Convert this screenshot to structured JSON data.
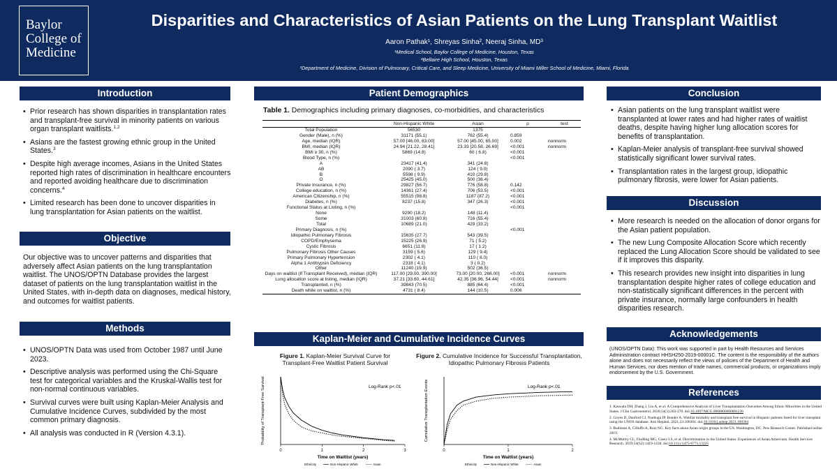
{
  "header": {
    "logo_line1": "Baylor",
    "logo_line2": "College of",
    "logo_line3": "Medicine",
    "title": "Disparities and Characteristics of Asian Patients on the Lung Transplant Waitlist",
    "authors": "Aaron Pathak¹, Shreyas Sinha², Neeraj Sinha, MD³",
    "affiliations": [
      "¹Medical School, Baylor College of Medicine, Houston, Texas",
      "²Bellaire High School, Houston, Texas",
      "³Department of Medicine, Division of Pulmonary, Critical Care, and Sleep Medicine, University of Miami Miller School of Medicine, Miami, Florida"
    ]
  },
  "sections": {
    "introduction": "Introduction",
    "objective": "Objective",
    "methods": "Methods",
    "patient_demographics": "Patient Demographics",
    "km_curves": "Kaplan-Meier and Cumulative Incidence Curves",
    "conclusion": "Conclusion",
    "discussion": "Discussion",
    "acknowledgements": "Acknowledgements",
    "references": "References"
  },
  "introduction": [
    {
      "text": "Prior research has shown disparities in transplantation rates and transplant-free survival in minority patients on various organ transplant waitlists.",
      "sup": "1,2"
    },
    {
      "text": "Asians are the fastest growing ethnic group in the United States.",
      "sup": "3"
    },
    {
      "text": "Despite high average incomes, Asians in the United States reported high rates of discrimination in healthcare encounters and reported avoiding healthcare due to discrimination concerns.",
      "sup": "4"
    },
    {
      "text": "Limited research has been done to uncover disparities in lung transplantation for Asian patients on the waitlist.",
      "sup": ""
    }
  ],
  "objective": "Our objective was to uncover patterns and disparities that adversely affect Asian patients on the lung transplantation waitlist. The UNOS/OPTN Database provides the largest dataset of patients on the lung transplantation waitlist in the United States, with in-depth data on diagnoses, medical history, and outcomes for waitlist patients.",
  "methods": [
    "UNOS/OPTN Data was used from October 1987 until June 2023.",
    "Descriptive analysis was performed using the Chi-Square test for categorical variables and the Kruskal-Wallis test for non-normal continuous variables.",
    "Survival curves were built using Kaplan-Meier Analysis and Cumulative Incidence Curves, subdivided by the most common primary diagnosis.",
    "All analysis was conducted in R (Version 4.3.1)."
  ],
  "table": {
    "caption_bold": "Table 1.",
    "caption_text": " Demographics including primary diagnoses, co-morbidities, and characteristics",
    "headers": [
      "",
      "Non-Hispanic White",
      "Asian",
      "p",
      "test"
    ],
    "rows": [
      [
        "Total Population",
        "56530",
        "1375",
        "",
        ""
      ],
      [
        "Gender (Male), n (%)",
        "31171 (55.1)",
        "762 (55.4)",
        "0.859",
        ""
      ],
      [
        "Age, median (IQR)",
        "57.00 [46.00, 63.00]",
        "57.00 [45.00, 65.00]",
        "0.002",
        "nonnorm"
      ],
      [
        "BMI, median (IQR)",
        "24.94 [21.22, 28.41]",
        "23.33 [20.58, 26.69]",
        "<0.001",
        "nonnorm"
      ],
      [
        "BMI ≥ 30, n (%)",
        "5869 (14.8)",
        "60 ( 6.8)",
        "<0.001",
        ""
      ],
      [
        "Blood Type, n (%)",
        "",
        "",
        "<0.001",
        ""
      ],
      [
        "A",
        "23417 (41.4)",
        "341 (24.8)",
        "",
        ""
      ],
      [
        "AB",
        "2090 ( 3.7)",
        "124 ( 9.0)",
        "",
        ""
      ],
      [
        "B",
        "5598 ( 9.9)",
        "410 (29.8)",
        "",
        ""
      ],
      [
        "O",
        "25425 (45.0)",
        "500 (36.4)",
        "",
        ""
      ],
      [
        "Private Insurance, n (%)",
        "29827 (56.7)",
        "776 (58.8)",
        "0.142",
        ""
      ],
      [
        "College education, n (%)",
        "14361 (27.4)",
        "706 (53.5)",
        "<0.001",
        ""
      ],
      [
        "American Citizenship, n (%)",
        "55515 (98.8)",
        "1187 (87.2)",
        "<0.001",
        ""
      ],
      [
        "Diabetes, n (%)",
        "8237 (15.8)",
        "347 (26.3)",
        "<0.001",
        ""
      ],
      [
        "Functional Status at Listing, n (%)",
        "",
        "",
        "<0.001",
        ""
      ],
      [
        "None",
        "9290 (18.2)",
        "148 (11.4)",
        "",
        ""
      ],
      [
        "Some",
        "31003 (60.8)",
        "716 (55.4)",
        "",
        ""
      ],
      [
        "Total",
        "10689 (21.0)",
        "429 (33.2)",
        "",
        ""
      ],
      [
        "Primary Diagnosis, n (%)",
        "",
        "",
        "<0.001",
        ""
      ],
      [
        "Idiopathic Pulmonary Fibrosis",
        "15635 (27.7)",
        "543 (39.5)",
        "",
        ""
      ],
      [
        "COPD/Emphysema",
        "15225 (26.9)",
        "71 ( 5.2)",
        "",
        ""
      ],
      [
        "Cystic Fibrosis",
        "6651 (11.8)",
        "17 ( 1.2)",
        "",
        ""
      ],
      [
        "Pulmonary Fibrosis Other Causes",
        "3159 ( 5.6)",
        "129 ( 9.4)",
        "",
        ""
      ],
      [
        "Primary Pulmonary Hypertension",
        "2302 ( 4.1)",
        "110 ( 8.0)",
        "",
        ""
      ],
      [
        "Alpha 1 Antitrypsin Deficiency",
        "2318 ( 4.1)",
        "3 ( 0.2)",
        "",
        ""
      ],
      [
        "Other",
        "11240 (19.9)",
        "502 (36.5)",
        "",
        ""
      ],
      [
        "Days on waitlist (If Transplant Received), median (IQR)",
        "117.00 [29.00, 390.00]",
        "73.00 [20.00, 266.00]",
        "<0.001",
        "nonnorm"
      ],
      [
        "Lung allocation score at listing, median (IQR)",
        "37.21 [33.60, 44.61]",
        "42.35 [36.96, 54.44]",
        "<0.001",
        "nonnorm"
      ],
      [
        "Transplanted, n (%)",
        "39843 (70.5)",
        "885 (64.4)",
        "<0.001",
        ""
      ],
      [
        "Death while on waitlist, n (%)",
        "4731 ( 8.4)",
        "144 (10.5)",
        "0.006",
        ""
      ]
    ]
  },
  "figures": {
    "fig1_bold": "Figure 1.",
    "fig1_caption": " Kaplan-Meier Survival Curve for Transplant-Free Waitlist Patient Survival",
    "fig2_bold": "Figure 2.",
    "fig2_caption": " Cumulative Incidence for Successful Transplantation, Idiopathic Pulmonary Fibrosis Patients"
  },
  "chart_data": [
    {
      "type": "line",
      "title": "",
      "xlabel": "Time on Waitlist (years)",
      "ylabel": "Probability of Transplant-Free Survival",
      "xlim": [
        0,
        3
      ],
      "ylim": [
        0,
        1
      ],
      "x_ticks": [
        "0",
        "1",
        "2",
        "3"
      ],
      "annotation": "Log-Rank p<.01",
      "legend_title": "Ethnicity",
      "legend_position": "bottom",
      "series": [
        {
          "name": "Non-Hispanic White",
          "style": "solid",
          "x": [
            0,
            0.05,
            0.1,
            0.2,
            0.3,
            0.5,
            0.75,
            1.0,
            1.25,
            1.5,
            2.0,
            2.5,
            2.75
          ],
          "y": [
            1.0,
            0.8,
            0.69,
            0.56,
            0.47,
            0.36,
            0.27,
            0.21,
            0.17,
            0.14,
            0.1,
            0.07,
            0.06
          ]
        },
        {
          "name": "Asian",
          "style": "dotted",
          "x": [
            0,
            0.05,
            0.1,
            0.2,
            0.3,
            0.5,
            0.75,
            1.0,
            1.25,
            1.5,
            2.0,
            2.5,
            2.75
          ],
          "y": [
            1.0,
            0.73,
            0.59,
            0.45,
            0.36,
            0.26,
            0.2,
            0.17,
            0.14,
            0.12,
            0.09,
            0.06,
            0.05
          ]
        }
      ]
    },
    {
      "type": "line",
      "title": "",
      "xlabel": "Time on Waitlist (years)",
      "ylabel": "Cumulative Transplantation Events",
      "xlim": [
        0,
        2
      ],
      "ylim": [
        0,
        1
      ],
      "x_ticks": [
        "0",
        "1",
        "2"
      ],
      "annotation": "Log-Rank p<.01",
      "legend_title": "Ethnicity",
      "legend_position": "bottom",
      "series": [
        {
          "name": "Non-Hispanic White",
          "style": "solid",
          "x": [
            0,
            0.05,
            0.1,
            0.2,
            0.3,
            0.5,
            0.75,
            1.0,
            1.5,
            2.0
          ],
          "y": [
            0.0,
            0.3,
            0.45,
            0.58,
            0.64,
            0.7,
            0.73,
            0.75,
            0.77,
            0.78
          ]
        },
        {
          "name": "Asian",
          "style": "dotted",
          "x": [
            0,
            0.05,
            0.1,
            0.2,
            0.3,
            0.5,
            0.75,
            1.0,
            1.5,
            2.0
          ],
          "y": [
            0.0,
            0.22,
            0.37,
            0.5,
            0.58,
            0.64,
            0.68,
            0.7,
            0.72,
            0.73
          ]
        }
      ]
    }
  ],
  "conclusion": [
    "Asian patients on the lung transplant waitlist were transplanted at lower rates and had higher rates of waitlist deaths, despite having higher lung allocation scores for benefits of transplantation.",
    "Kaplan-Meier analysis of transplant-free survival showed statistically significant lower survival rates.",
    "Transplantation rates in the largest group, idiopathic pulmonary fibrosis, were lower for Asian patients."
  ],
  "discussion": [
    "More research is needed on the allocation of donor organs for the Asian patient population.",
    "The new Lung Composite Allocation Score which recently replaced the Lung Allocation Score should be validated to see if it improves this disparity.",
    "This research provides new insight into disparities in lung transplantation despite higher rates of college education and non-statistically significant differences in the percent with private insurance, normally large confounders in health disparities research."
  ],
  "acknowledgements": "(UNOS/OPTN Data): This work was supported in part by Health Resources and Services Administration contract HHSH250-2019-00001C. The content is the responsibility of the authors alone and does not necessarily reflect the views of policies of the Department of Health and Human Services, nor does mention of trade names, commercial products, or organizations imply endorsement by the U.S. Government.",
  "references": [
    {
      "text": "1. Kaswala DH, Zhang J, Liu A, et al. A Comprehensive Analysis of Liver Transplantation Outcomes Among Ethnic Minorities in the United States. J Clin Gastroenterol. 2020;54(3):263-270. doi:",
      "link": "10.1097/MCG.0000000000001236"
    },
    {
      "text": "2. Goyes D, Danford CJ, Nsubuga JP, Bonder A. Waitlist mortality and transplant free survival in Hispanic patients listed for liver transplant using the UNOS database. Ann Hepatol. 2021;23:100304. doi:",
      "link": "10.1016/j.aohep.2021.100304"
    },
    {
      "text": "3. Budiman A, Cilluffo A, Ruiz NG. Key facts about Asian origin groups in the US. Washington, DC: Pew Research Center. Published online 2019.",
      "link": ""
    },
    {
      "text": "4. McMurtry CL, Findling MG, Casey LS, et al. Discrimination in the United States: Experiences of Asian Americans. Health Services Research. 2019;54(S2):1419-1430. doi:",
      "link": "10.1111/1475-6773.13225"
    }
  ]
}
